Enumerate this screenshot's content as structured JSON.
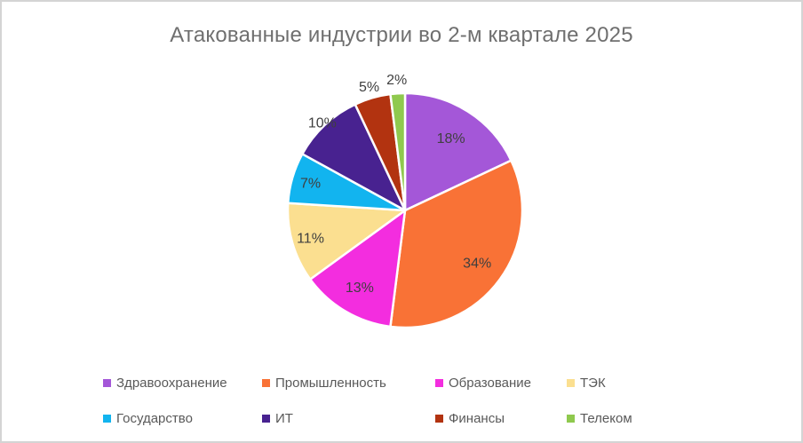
{
  "window": {
    "background": "#ffffff",
    "border_color": "#d4d4d4"
  },
  "chart_data": {
    "type": "pie",
    "title": "Атакованные индустрии во 2-м квартале 2025",
    "legend_position": "bottom",
    "legend_rows": 2,
    "legend_columns": 4,
    "start_angle_deg": 0,
    "direction": "clockwise",
    "colors": {
      "title_text": "#6f6f6f",
      "percent_label_text": "#3f3f3f",
      "legend_text": "#595959",
      "slice_separator": "#ffffff"
    },
    "slices": [
      {
        "label": "Здравоохранение",
        "value": 18,
        "percent_label": "18%",
        "color": "#a457d8"
      },
      {
        "label": "Промышленность",
        "value": 34,
        "percent_label": "34%",
        "color": "#f97236"
      },
      {
        "label": "Образование",
        "value": 13,
        "percent_label": "13%",
        "color": "#f32ddf"
      },
      {
        "label": "ТЭК",
        "value": 11,
        "percent_label": "11%",
        "color": "#fbdf90"
      },
      {
        "label": "Государство",
        "value": 7,
        "percent_label": "7%",
        "color": "#12b4ef"
      },
      {
        "label": "ИТ",
        "value": 10,
        "percent_label": "10%",
        "color": "#482290"
      },
      {
        "label": "Финансы",
        "value": 5,
        "percent_label": "5%",
        "color": "#b23310"
      },
      {
        "label": "Телеком",
        "value": 2,
        "percent_label": "2%",
        "color": "#8fc94e"
      }
    ]
  }
}
